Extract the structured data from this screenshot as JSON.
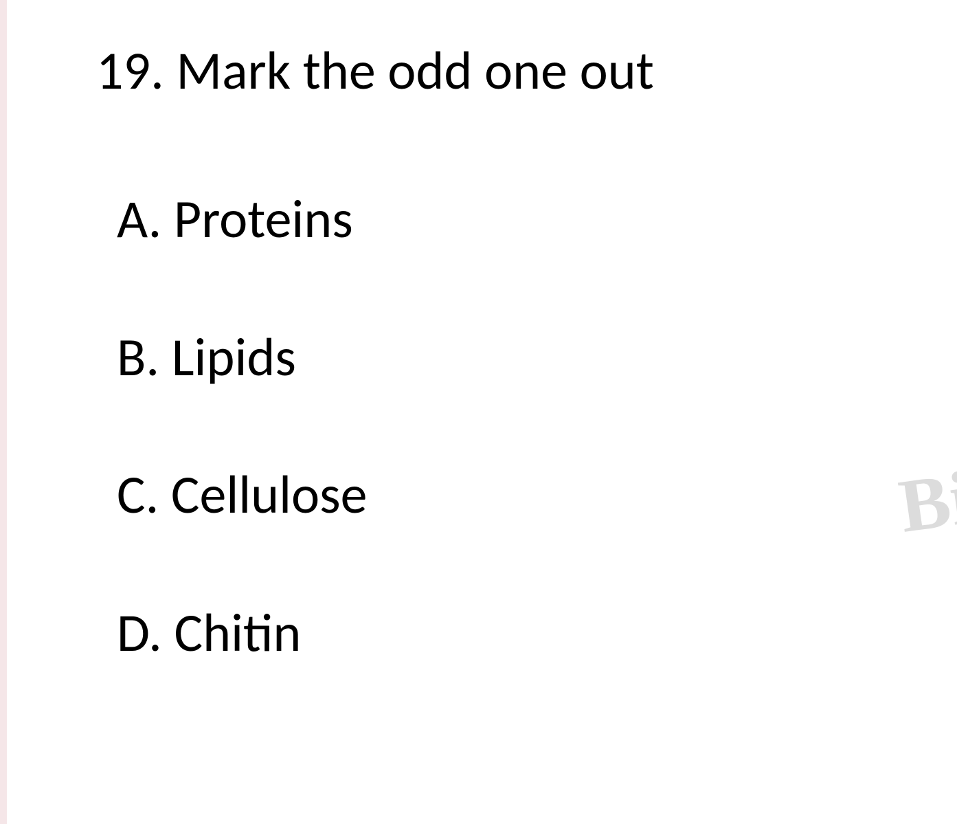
{
  "question": {
    "number": "19.",
    "text": "Mark the odd one out",
    "number_fontsize": 78,
    "text_fontsize": 78,
    "text_color": "#000000"
  },
  "options": [
    {
      "letter": "A.",
      "text": "Proteins"
    },
    {
      "letter": "B.",
      "text": "Lipids"
    },
    {
      "letter": "C.",
      "text": "Cellulose"
    },
    {
      "letter": "D.",
      "text": "Chitin"
    }
  ],
  "option_fontsize": 78,
  "option_text_color": "#000000",
  "background_color": "#ffffff",
  "left_edge_color": "#f5e6e8",
  "watermark": {
    "text": "Bi",
    "color": "#dcdcdc",
    "fontsize": 110
  }
}
